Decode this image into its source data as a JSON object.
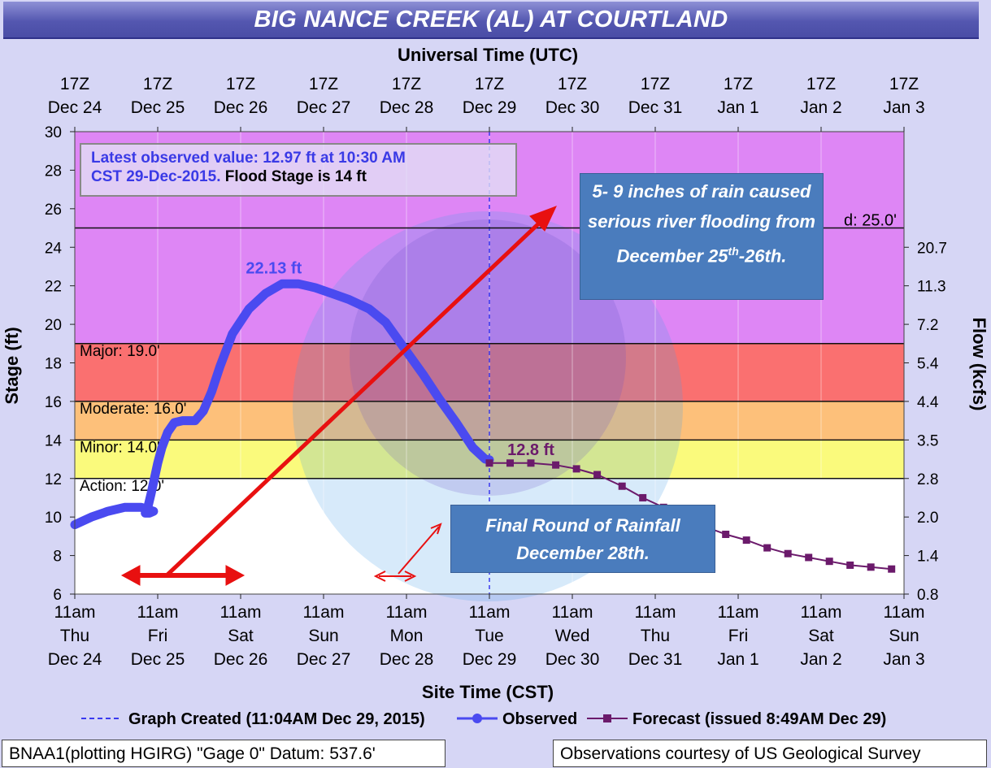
{
  "title": "BIG NANCE CREEK (AL) AT COURTLAND",
  "top_axis": {
    "label": "Universal Time (UTC)",
    "ticks": [
      {
        "time": "17Z",
        "date": "Dec 24"
      },
      {
        "time": "17Z",
        "date": "Dec 25"
      },
      {
        "time": "17Z",
        "date": "Dec 26"
      },
      {
        "time": "17Z",
        "date": "Dec 27"
      },
      {
        "time": "17Z",
        "date": "Dec 28"
      },
      {
        "time": "17Z",
        "date": "Dec 29"
      },
      {
        "time": "17Z",
        "date": "Dec 30"
      },
      {
        "time": "17Z",
        "date": "Dec 31"
      },
      {
        "time": "17Z",
        "date": "Jan 1"
      },
      {
        "time": "17Z",
        "date": "Jan 2"
      },
      {
        "time": "17Z",
        "date": "Jan 3"
      }
    ]
  },
  "bottom_axis": {
    "label": "Site Time (CST)",
    "ticks": [
      {
        "time": "11am",
        "day": "Thu",
        "date": "Dec 24"
      },
      {
        "time": "11am",
        "day": "Fri",
        "date": "Dec 25"
      },
      {
        "time": "11am",
        "day": "Sat",
        "date": "Dec 26"
      },
      {
        "time": "11am",
        "day": "Sun",
        "date": "Dec 27"
      },
      {
        "time": "11am",
        "day": "Mon",
        "date": "Dec 28"
      },
      {
        "time": "11am",
        "day": "Tue",
        "date": "Dec 29"
      },
      {
        "time": "11am",
        "day": "Wed",
        "date": "Dec 30"
      },
      {
        "time": "11am",
        "day": "Thu",
        "date": "Dec 31"
      },
      {
        "time": "11am",
        "day": "Fri",
        "date": "Jan 1"
      },
      {
        "time": "11am",
        "day": "Sat",
        "date": "Jan 2"
      },
      {
        "time": "11am",
        "day": "Sun",
        "date": "Jan 3"
      }
    ]
  },
  "left_axis_label": "Stage (ft)",
  "right_axis_label": "Flow (kcfs)",
  "latest_box": {
    "line1": "Latest observed value: 12.97 ft at 10:30 AM",
    "line2_blue": "CST 29-Dec-2015.",
    "line2_black": "Flood Stage is 14 ft"
  },
  "callouts": {
    "rain": {
      "text_before_sup": "5- 9 inches of rain caused serious river flooding  from December 25",
      "sup": "th",
      "text_after_sup": "-26th."
    },
    "final": {
      "line1": "Final Round of Rainfall",
      "line2": "December 28th."
    }
  },
  "legend": {
    "graph_created": "Graph Created (11:04AM Dec 29, 2015)",
    "observed": "Observed",
    "forecast": "Forecast (issued 8:49AM Dec 29)"
  },
  "footer": {
    "left": "BNAA1(plotting HGIRG) \"Gage 0\" Datum: 537.6'",
    "right": "Observations courtesy of US Geological Survey"
  },
  "colors": {
    "observed": "#4a4af0",
    "forecast": "#6b1a6b",
    "record_zone": "#de86f5",
    "major_zone": "#de86f5",
    "moderate_zone": "#fa7070",
    "minor_zone": "#fdc07a",
    "action_zone": "#fafa7c",
    "annotation_arrow": "#e81010",
    "callout_bg": "#4a7cbd"
  },
  "chart_data": {
    "type": "line",
    "title": "BIG NANCE CREEK (AL) AT COURTLAND",
    "xlabel": "Site Time (CST)",
    "ylabel": "Stage (ft)",
    "y2label": "Flow (kcfs)",
    "x_unit": "days after 11am Thu Dec 24 (CST)",
    "xlim": [
      0,
      10
    ],
    "ylim": [
      6,
      30
    ],
    "y_ticks": [
      6,
      8,
      10,
      12,
      14,
      16,
      18,
      20,
      22,
      24,
      26,
      28,
      30
    ],
    "flow_ticks": [
      {
        "stage": 6,
        "label": "0.8"
      },
      {
        "stage": 8,
        "label": "1.4"
      },
      {
        "stage": 10,
        "label": "2.0"
      },
      {
        "stage": 12,
        "label": "2.8"
      },
      {
        "stage": 14,
        "label": "3.5"
      },
      {
        "stage": 16,
        "label": "4.4"
      },
      {
        "stage": 18,
        "label": "5.4"
      },
      {
        "stage": 20,
        "label": "7.2"
      },
      {
        "stage": 22,
        "label": "11.3"
      },
      {
        "stage": 24,
        "label": "20.7"
      }
    ],
    "thresholds": [
      {
        "name": "Action",
        "label": "Action: 12.0'",
        "stage": 12.0
      },
      {
        "name": "Minor",
        "label": "Minor: 14.0'",
        "stage": 14.0
      },
      {
        "name": "Moderate",
        "label": "Moderate: 16.0'",
        "stage": 16.0
      },
      {
        "name": "Major",
        "label": "Major: 19.0'",
        "stage": 19.0
      },
      {
        "name": "Record",
        "label": "d: 25.0'",
        "stage": 25.0
      }
    ],
    "graph_created_x": 5.0,
    "series": [
      {
        "name": "Observed",
        "points": [
          [
            0.0,
            9.6
          ],
          [
            0.2,
            10.0
          ],
          [
            0.4,
            10.3
          ],
          [
            0.6,
            10.5
          ],
          [
            0.8,
            10.5
          ],
          [
            0.95,
            10.3
          ],
          [
            0.9,
            10.2
          ],
          [
            0.85,
            10.2
          ],
          [
            0.88,
            10.5
          ],
          [
            0.92,
            11.2
          ],
          [
            0.96,
            12.0
          ],
          [
            1.0,
            12.8
          ],
          [
            1.05,
            13.6
          ],
          [
            1.12,
            14.4
          ],
          [
            1.2,
            14.9
          ],
          [
            1.3,
            15.0
          ],
          [
            1.45,
            15.0
          ],
          [
            1.55,
            15.5
          ],
          [
            1.65,
            16.5
          ],
          [
            1.75,
            17.8
          ],
          [
            1.9,
            19.5
          ],
          [
            2.1,
            20.8
          ],
          [
            2.3,
            21.6
          ],
          [
            2.5,
            22.1
          ],
          [
            2.7,
            22.1
          ],
          [
            2.9,
            21.9
          ],
          [
            3.1,
            21.6
          ],
          [
            3.3,
            21.3
          ],
          [
            3.55,
            20.8
          ],
          [
            3.75,
            20.1
          ],
          [
            3.95,
            18.9
          ],
          [
            4.2,
            17.4
          ],
          [
            4.4,
            16.1
          ],
          [
            4.6,
            14.9
          ],
          [
            4.8,
            13.6
          ],
          [
            4.95,
            13.0
          ],
          [
            5.0,
            12.97
          ]
        ]
      },
      {
        "name": "Forecast",
        "points": [
          [
            5.0,
            12.8
          ],
          [
            5.25,
            12.8
          ],
          [
            5.5,
            12.8
          ],
          [
            5.8,
            12.7
          ],
          [
            6.05,
            12.5
          ],
          [
            6.3,
            12.2
          ],
          [
            6.6,
            11.6
          ],
          [
            6.85,
            11.0
          ],
          [
            7.1,
            10.5
          ],
          [
            7.35,
            10.0
          ],
          [
            7.6,
            9.5
          ],
          [
            7.85,
            9.1
          ],
          [
            8.1,
            8.8
          ],
          [
            8.35,
            8.4
          ],
          [
            8.6,
            8.1
          ],
          [
            8.85,
            7.9
          ],
          [
            9.1,
            7.7
          ],
          [
            9.35,
            7.5
          ],
          [
            9.6,
            7.4
          ],
          [
            9.85,
            7.3
          ]
        ]
      }
    ],
    "annotations": [
      {
        "text": "22.13 ft",
        "x": 2.4,
        "y": 22.13,
        "series": "Observed"
      },
      {
        "text": "12.8 ft",
        "x": 5.5,
        "y": 12.8,
        "series": "Forecast"
      }
    ]
  }
}
